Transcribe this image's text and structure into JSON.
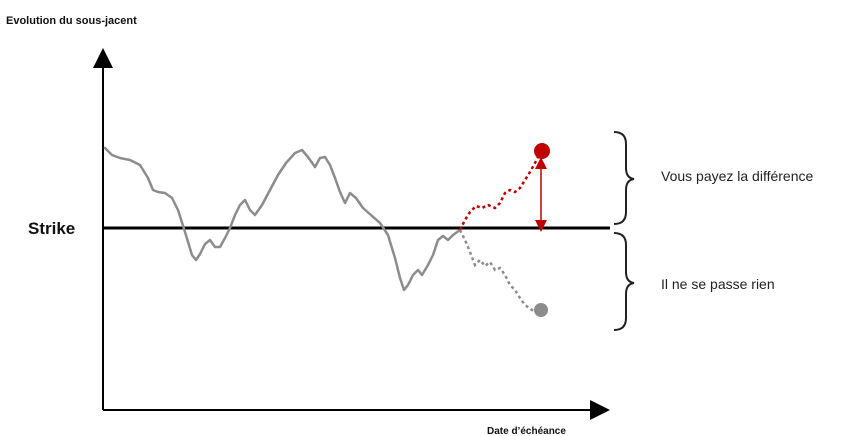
{
  "labels": {
    "y_axis": "Evolution du sous-jacent",
    "x_axis": "Date d’échéance",
    "strike": "Strike",
    "upper_brace": "Vous payez la différence",
    "lower_brace": "Il ne se passe rien"
  },
  "colors": {
    "axis": "#000000",
    "strike_line": "#000000",
    "history_line": "#8c8c8c",
    "up_scenario": "#c00000",
    "down_scenario": "#8c8c8c"
  }
}
